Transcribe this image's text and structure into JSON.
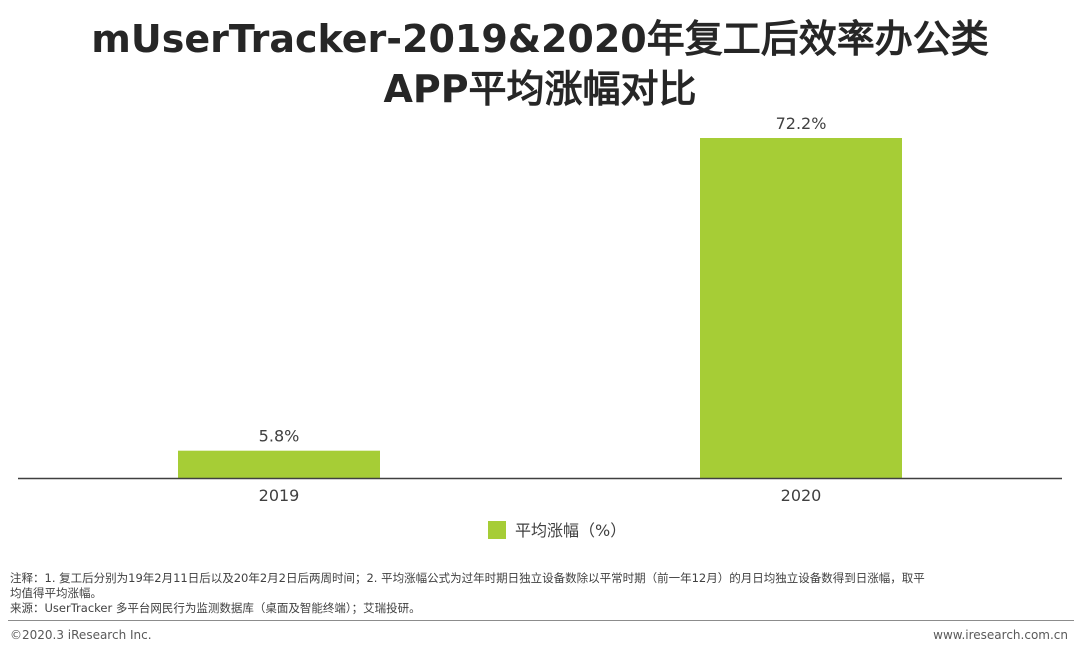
{
  "title": {
    "line1": "mUserTracker-2019&2020年复工后效率办公类",
    "line2": "APP平均涨幅对比"
  },
  "chart_data": {
    "type": "bar",
    "categories": [
      "2019",
      "2020"
    ],
    "series": [
      {
        "name": "平均涨幅（%）",
        "values": [
          5.8,
          72.2
        ],
        "labels": [
          "5.8%",
          "72.2%"
        ]
      }
    ],
    "ylim": [
      0,
      72.2
    ],
    "grid": false,
    "legend_position": "bottom",
    "bar_color": "#a6cd36",
    "axis_color": "#404040"
  },
  "notes": {
    "line1": "注释：1. 复工后分别为19年2月11日后以及20年2月2日后两周时间；2. 平均涨幅公式为过年时期日独立设备数除以平常时期（前一年12月）的月日均独立设备数得到日涨幅，取平",
    "line2": "均值得平均涨幅。",
    "line3": "来源：UserTracker 多平台网民行为监测数据库（桌面及智能终端）；艾瑞投研。"
  },
  "footer": {
    "left": "©2020.3 iResearch Inc.",
    "right": "www.iresearch.com.cn"
  }
}
